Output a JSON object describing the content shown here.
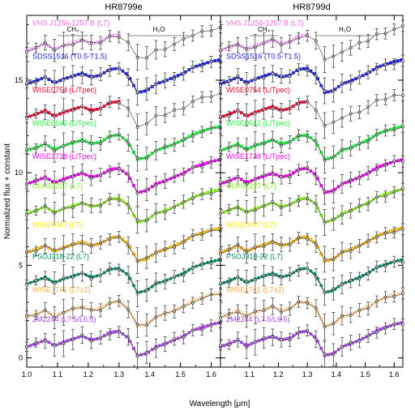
{
  "chart_data": {
    "type": "line",
    "ylabel": "Normalized flux + constant",
    "ylim": [
      -0.5,
      18.5
    ],
    "yticks": [
      0,
      5,
      10,
      15
    ],
    "xlim": [
      1.0,
      1.63
    ],
    "xticks": [
      "1.0",
      "1.1",
      "1.2",
      "1.3",
      "1.4",
      "1.5",
      "1.6"
    ],
    "xtick_values": [
      1.0,
      1.1,
      1.2,
      1.3,
      1.4,
      1.5,
      1.6
    ],
    "xlabel": "Wavelength [μm]",
    "band_ch4": {
      "label": "CH₄",
      "range": [
        1.1,
        1.2
      ]
    },
    "band_h2o": {
      "label": "H₂O",
      "range": [
        1.33,
        1.53
      ]
    },
    "grid": false,
    "panels": [
      {
        "title": "HR8799e"
      },
      {
        "title": "HR8799d"
      }
    ],
    "series": [
      {
        "name": "VHS J1256-1257 B (L7)",
        "color": "#ee66ee",
        "offset": 16.6,
        "filled": false,
        "marker": "square",
        "model_left_x": [
          1.0,
          1.3
        ],
        "model_right_x": [
          1.0,
          1.3
        ]
      },
      {
        "name": "SDSS1516 (T0.5-T1.5)",
        "color": "#2222dd",
        "offset": 14.8,
        "filled": true,
        "marker": "square",
        "model_left_x": [
          1.0,
          1.63
        ],
        "model_right_x": [
          1.0,
          1.63
        ]
      },
      {
        "name": "WISE0754 (L/Tpec)",
        "color": "#ee0033",
        "offset": 13.0,
        "filled": true,
        "marker": "square",
        "model_left_x": [
          1.0,
          1.3
        ],
        "model_right_x": [
          1.0,
          1.3
        ]
      },
      {
        "name": "WISE0642 (L/Tpec)",
        "color": "#22ee44",
        "offset": 11.2,
        "filled": true,
        "marker": "square",
        "model_left_x": [
          1.0,
          1.63
        ],
        "model_right_x": [
          1.0,
          1.63
        ]
      },
      {
        "name": "WISE1738 (L/Tpec)",
        "color": "#ee00ee",
        "offset": 9.4,
        "filled": true,
        "marker": "square",
        "model_left_x": [
          1.0,
          1.63
        ],
        "model_right_x": [
          1.0,
          1.63
        ]
      },
      {
        "name": "ULAS2227 (L7)",
        "color": "#88ee22",
        "offset": 7.8,
        "filled": true,
        "marker": "circle",
        "model_left_x": [
          1.0,
          1.63
        ],
        "model_right_x": [
          1.0,
          1.63
        ]
      },
      {
        "name": "WISE0047 (L7)",
        "color": "#ffee00",
        "offset": 5.7,
        "filled": true,
        "marker": "circle",
        "model_left_x": [
          1.0,
          1.63
        ],
        "model_right_x": [
          1.0,
          1.63
        ]
      },
      {
        "name": "PSOJ318-22 (L7)",
        "color": "#008866",
        "offset": 4.0,
        "filled": true,
        "marker": "circle",
        "model_left_x": [
          1.0,
          1.63
        ],
        "model_right_x": [
          1.0,
          1.63
        ]
      },
      {
        "name": "WISE1741 (L7±2)",
        "color": "#ffaa44",
        "offset": 2.2,
        "filled": false,
        "marker": "circle",
        "model_left_x": [
          1.0,
          1.63
        ],
        "model_right_x": [
          1.0,
          1.63
        ]
      },
      {
        "name": "2M2244 (L7.5/L6.5)",
        "color": "#aa44ee",
        "offset": 0.6,
        "filled": true,
        "marker": "square",
        "model_left_x": [
          1.0,
          1.63
        ],
        "model_right_x": [
          1.0,
          1.63
        ]
      }
    ],
    "data_profile": {
      "wavelength": [
        1.0,
        1.03,
        1.06,
        1.09,
        1.12,
        1.15,
        1.18,
        1.21,
        1.24,
        1.27,
        1.3,
        1.33,
        1.36,
        1.39,
        1.42,
        1.45,
        1.48,
        1.51,
        1.54,
        1.57,
        1.6,
        1.63
      ],
      "relative_flux": [
        0.0,
        0.15,
        0.35,
        0.05,
        0.25,
        0.4,
        0.55,
        0.35,
        0.45,
        0.75,
        0.8,
        0.45,
        -0.45,
        -0.35,
        0.0,
        0.15,
        0.35,
        0.55,
        0.85,
        1.0,
        1.15,
        1.25
      ],
      "error": [
        0.25,
        0.25,
        0.4,
        0.6,
        0.7,
        0.55,
        0.45,
        0.4,
        0.35,
        0.3,
        0.3,
        0.45,
        0.7,
        0.6,
        0.5,
        0.4,
        0.35,
        0.35,
        0.3,
        0.3,
        0.3,
        0.3
      ]
    }
  }
}
